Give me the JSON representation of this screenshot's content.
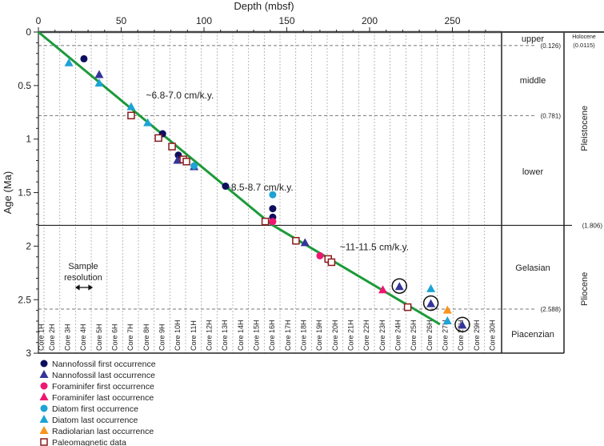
{
  "chart_data": {
    "type": "scatter",
    "title": "",
    "xlabel": "Depth (mbsf)",
    "ylabel": "Age (Ma)",
    "xlim": [
      0,
      279
    ],
    "ylim": [
      0,
      3
    ],
    "xticks": [
      "0",
      "50",
      "100",
      "150",
      "200",
      "250"
    ],
    "yticks": [
      "0",
      "0.5",
      "1",
      "1.5",
      "2",
      "2.5",
      "3"
    ],
    "colors": {
      "nanno": "#0d0f5e",
      "nannoLO": "#35349a",
      "foram": "#ee1670",
      "diatom": "#1da3d4",
      "radio": "#f7941d",
      "paleomag": "#8b1a1a",
      "line": "#1c9a3a"
    },
    "series": [
      {
        "name": "Nannofossil first occurrence",
        "marker": "circle",
        "color": "#0d0f5e",
        "points": [
          [
            27.5,
            0.25
          ],
          [
            75,
            0.95
          ],
          [
            84.5,
            1.15
          ],
          [
            113,
            1.44
          ],
          [
            141.5,
            1.65
          ],
          [
            141.5,
            1.73
          ]
        ]
      },
      {
        "name": "Nannofossil last occurrence",
        "marker": "triangle",
        "color": "#35349a",
        "points": [
          [
            36.7,
            0.4
          ],
          [
            84,
            1.2
          ],
          [
            94,
            1.26
          ],
          [
            161,
            1.97
          ],
          [
            218,
            2.38
          ],
          [
            237,
            2.54
          ],
          [
            256,
            2.74
          ]
        ]
      },
      {
        "name": "Foraminifer first occurrence",
        "marker": "circle",
        "color": "#ee1670",
        "points": [
          [
            141.5,
            1.77
          ],
          [
            170,
            2.09
          ]
        ]
      },
      {
        "name": "Foraminifer last occurrence",
        "marker": "triangle",
        "color": "#ee1670",
        "points": [
          [
            208,
            2.41
          ]
        ]
      },
      {
        "name": "Diatom first occurrence",
        "marker": "circle",
        "color": "#1da3d4",
        "points": [
          [
            94,
            1.25
          ],
          [
            141.5,
            1.52
          ]
        ]
      },
      {
        "name": "Diatom last occurrence",
        "marker": "triangle",
        "color": "#1da3d4",
        "points": [
          [
            18.4,
            0.29
          ],
          [
            36.7,
            0.48
          ],
          [
            56,
            0.7
          ],
          [
            66,
            0.85
          ],
          [
            237,
            2.4
          ],
          [
            247,
            2.7
          ]
        ]
      },
      {
        "name": "Radiolarian last occurrence",
        "marker": "triangle",
        "color": "#f7941d",
        "points": [
          [
            247,
            2.6
          ]
        ]
      },
      {
        "name": "Paleomagnetic data",
        "marker": "square",
        "color": "#8b1a1a",
        "points": [
          [
            56,
            0.78
          ],
          [
            72.5,
            0.99
          ],
          [
            80.7,
            1.07
          ],
          [
            87.5,
            1.19
          ],
          [
            89.4,
            1.21
          ],
          [
            137,
            1.77
          ],
          [
            155.5,
            1.95
          ],
          [
            175,
            2.12
          ],
          [
            177,
            2.15
          ],
          [
            223,
            2.57
          ]
        ]
      }
    ],
    "circled_points": [
      [
        218,
        2.38
      ],
      [
        237,
        2.54
      ],
      [
        256,
        2.74
      ]
    ],
    "age_model_line": [
      [
        0,
        0
      ],
      [
        141,
        1.8
      ],
      [
        242.5,
        2.73
      ]
    ],
    "annotations": [
      {
        "text": "~6.8-7.0 cm/k.y.",
        "x": 65,
        "y": 0.62
      },
      {
        "text": "~8.5-8.7 cm/k.y.",
        "x": 113,
        "y": 1.48
      },
      {
        "text": "~11-11.5  cm/k.y.",
        "x": 182,
        "y": 2.04
      }
    ],
    "sample_resolution": {
      "label1": "Sample",
      "label2": "resolution"
    },
    "cores": [
      "Core 1H",
      "Core 2H",
      "Core 3H",
      "Core 4H",
      "Core 5H",
      "Core 6H",
      "Core 7H",
      "Core 8H",
      "Core 9H",
      "Core 10H",
      "Core 11H",
      "Core 12H",
      "Core 13H",
      "Core 14H",
      "Core 15H",
      "Core 16H",
      "Core 17H",
      "Core 18H",
      "Core 19H",
      "Core 20H",
      "Core 21H",
      "Core 22H",
      "Core 23H",
      "Core 24H",
      "Core 25H",
      "Core 26H",
      "Core 27H",
      "Core 28H",
      "Core 29H",
      "Core 30H"
    ],
    "boundaries": [
      {
        "age": 0.126,
        "label": "(0.126)",
        "style": "dashed"
      },
      {
        "age": 0.781,
        "label": "(0.781)",
        "style": "dashed"
      },
      {
        "age": 1.806,
        "label": "(1.806)",
        "style": "solid"
      },
      {
        "age": 2.588,
        "label": "(2.588)",
        "style": "dashed"
      }
    ],
    "stages": [
      {
        "name": "upper",
        "age": 0.06
      },
      {
        "name": "middle",
        "age": 0.45
      },
      {
        "name": "lower",
        "age": 1.3
      },
      {
        "name": "Gelasian",
        "age": 2.2
      },
      {
        "name": "Piacenzian",
        "age": 2.82
      }
    ],
    "epochs": [
      {
        "name": "Holocene",
        "sub": "(0.0115)"
      },
      {
        "name": "Pleistocene",
        "age": 0.9
      },
      {
        "name": "Pliocene",
        "age": 2.4
      }
    ]
  }
}
